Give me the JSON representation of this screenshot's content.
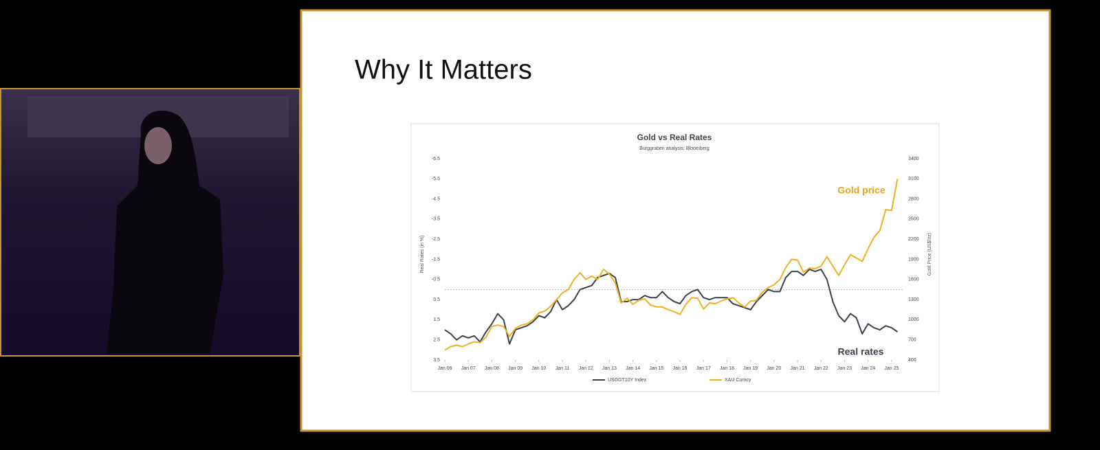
{
  "slide_title": "Why It Matters",
  "chart_data": {
    "type": "line",
    "title": "Gold  vs Real Rates",
    "subtitle": "Burggraben analysis; Bloomberg",
    "y_label": "Real Rates (in %)",
    "y2_label": "Gold Price (US$/oz)",
    "annotations": [
      {
        "text": "Gold price",
        "color": "#e8a21e"
      },
      {
        "text": "Real rates",
        "color": "#3a404c"
      }
    ],
    "x": [
      2006,
      2006.25,
      2006.5,
      2006.75,
      2007,
      2007.25,
      2007.5,
      2007.75,
      2008,
      2008.25,
      2008.5,
      2008.75,
      2009,
      2009.25,
      2009.5,
      2009.75,
      2010,
      2010.25,
      2010.5,
      2010.75,
      2011,
      2011.25,
      2011.5,
      2011.75,
      2012,
      2012.25,
      2012.5,
      2012.75,
      2013,
      2013.25,
      2013.5,
      2013.75,
      2014,
      2014.25,
      2014.5,
      2014.75,
      2015,
      2015.25,
      2015.5,
      2015.75,
      2016,
      2016.25,
      2016.5,
      2016.75,
      2017,
      2017.25,
      2017.5,
      2017.75,
      2018,
      2018.25,
      2018.5,
      2018.75,
      2019,
      2019.25,
      2019.5,
      2019.75,
      2020,
      2020.25,
      2020.5,
      2020.75,
      2021,
      2021.25,
      2021.5,
      2021.75,
      2022,
      2022.25,
      2022.5,
      2022.75,
      2023,
      2023.25,
      2023.5,
      2023.75,
      2024,
      2024.25,
      2024.5,
      2024.75,
      2025,
      2025.25
    ],
    "xlim": [
      2006,
      2025.5
    ],
    "xticks": [
      {
        "value": 2006,
        "label": "Jan 06"
      },
      {
        "value": 2007,
        "label": "Jan 07"
      },
      {
        "value": 2008,
        "label": "Jan 08"
      },
      {
        "value": 2009,
        "label": "Jan 09"
      },
      {
        "value": 2010,
        "label": "Jan 10"
      },
      {
        "value": 2011,
        "label": "Jan 11"
      },
      {
        "value": 2012,
        "label": "Jan 12"
      },
      {
        "value": 2013,
        "label": "Jan 13"
      },
      {
        "value": 2014,
        "label": "Jan 14"
      },
      {
        "value": 2015,
        "label": "Jan 15"
      },
      {
        "value": 2016,
        "label": "Jan 16"
      },
      {
        "value": 2017,
        "label": "Jan 17"
      },
      {
        "value": 2018,
        "label": "Jan 18"
      },
      {
        "value": 2019,
        "label": "Jan 19"
      },
      {
        "value": 2020,
        "label": "Jan 20"
      },
      {
        "value": 2021,
        "label": "Jan 21"
      },
      {
        "value": 2022,
        "label": "Jan 22"
      },
      {
        "value": 2023,
        "label": "Jan 23"
      },
      {
        "value": 2024,
        "label": "Jan 24"
      },
      {
        "value": 2025,
        "label": "Jan 25"
      }
    ],
    "ylim": [
      3.5,
      -6.5
    ],
    "yticks": [
      -6.5,
      -5.5,
      -4.5,
      -3.5,
      -2.5,
      -1.5,
      -0.5,
      0.5,
      1.5,
      2.5,
      3.5
    ],
    "y2lim": [
      400,
      3400
    ],
    "y2ticks": [
      400,
      700,
      1000,
      1300,
      1600,
      1900,
      2200,
      2500,
      2800,
      3100,
      3400
    ],
    "reference_line": 0,
    "legend": "bottom",
    "series": [
      {
        "name": "USGGT10Y Index",
        "color": "#3a404c",
        "values": [
          2.0,
          2.2,
          2.5,
          2.3,
          2.4,
          2.3,
          2.6,
          2.1,
          1.7,
          1.2,
          1.5,
          2.7,
          2.0,
          1.9,
          1.8,
          1.6,
          1.3,
          1.4,
          1.1,
          0.5,
          1.0,
          0.8,
          0.5,
          0.0,
          -0.1,
          -0.2,
          -0.6,
          -0.7,
          -0.8,
          -0.6,
          0.6,
          0.6,
          0.5,
          0.5,
          0.3,
          0.4,
          0.4,
          0.1,
          0.4,
          0.6,
          0.7,
          0.3,
          0.1,
          0.0,
          0.4,
          0.5,
          0.4,
          0.4,
          0.4,
          0.7,
          0.8,
          0.9,
          1.0,
          0.6,
          0.3,
          0.0,
          0.1,
          0.1,
          -0.6,
          -0.9,
          -0.9,
          -0.7,
          -1.0,
          -0.9,
          -1.0,
          -0.5,
          0.6,
          1.3,
          1.6,
          1.2,
          1.4,
          2.2,
          1.7,
          1.9,
          2.0,
          1.8,
          1.9,
          2.1
        ]
      },
      {
        "name": "XAU Curncy",
        "color": "#f0b020",
        "axis": "y2",
        "values": [
          550,
          600,
          620,
          600,
          640,
          670,
          660,
          740,
          900,
          920,
          900,
          750,
          870,
          920,
          940,
          1000,
          1100,
          1130,
          1200,
          1300,
          1400,
          1450,
          1600,
          1700,
          1600,
          1650,
          1600,
          1750,
          1680,
          1550,
          1250,
          1320,
          1230,
          1290,
          1310,
          1220,
          1190,
          1190,
          1150,
          1120,
          1080,
          1230,
          1330,
          1320,
          1160,
          1250,
          1240,
          1280,
          1310,
          1330,
          1250,
          1190,
          1280,
          1290,
          1410,
          1480,
          1520,
          1600,
          1780,
          1900,
          1890,
          1710,
          1770,
          1760,
          1800,
          1940,
          1800,
          1660,
          1820,
          1970,
          1920,
          1870,
          2060,
          2230,
          2330,
          2640,
          2630,
          3100
        ]
      }
    ]
  }
}
